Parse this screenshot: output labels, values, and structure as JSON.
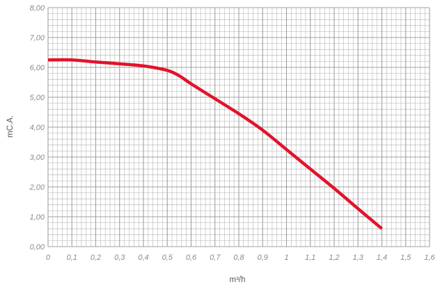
{
  "chart_data": {
    "type": "line",
    "title": "",
    "xlabel": "m³/h",
    "ylabel": "mC.A.",
    "xlim": [
      0,
      1.6
    ],
    "ylim": [
      0,
      8
    ],
    "x_ticks": [
      "0",
      "0,1",
      "0,2",
      "0,3",
      "0,4",
      "0,5",
      "0,6",
      "0,7",
      "0,8",
      "0,9",
      "1",
      "1,1",
      "1,2",
      "1,3",
      "1,4",
      "1,5",
      "1,6"
    ],
    "y_ticks": [
      "0,00",
      "1,00",
      "2,00",
      "3,00",
      "4,00",
      "5,00",
      "6,00",
      "7,00",
      "8,00"
    ],
    "grid": true,
    "colors": {
      "curve": "#e3122b",
      "grid": "#9b9b9b",
      "text": "#8a8a8a"
    },
    "series": [
      {
        "x": [
          0,
          0.1,
          0.2,
          0.3,
          0.4,
          0.5,
          0.55,
          0.6,
          0.7,
          0.8,
          0.9,
          1.0,
          1.1,
          1.2,
          1.3,
          1.4
        ],
        "y": [
          6.25,
          6.25,
          6.18,
          6.12,
          6.05,
          5.9,
          5.72,
          5.45,
          4.95,
          4.45,
          3.9,
          3.25,
          2.6,
          1.95,
          1.27,
          0.6
        ]
      }
    ]
  }
}
